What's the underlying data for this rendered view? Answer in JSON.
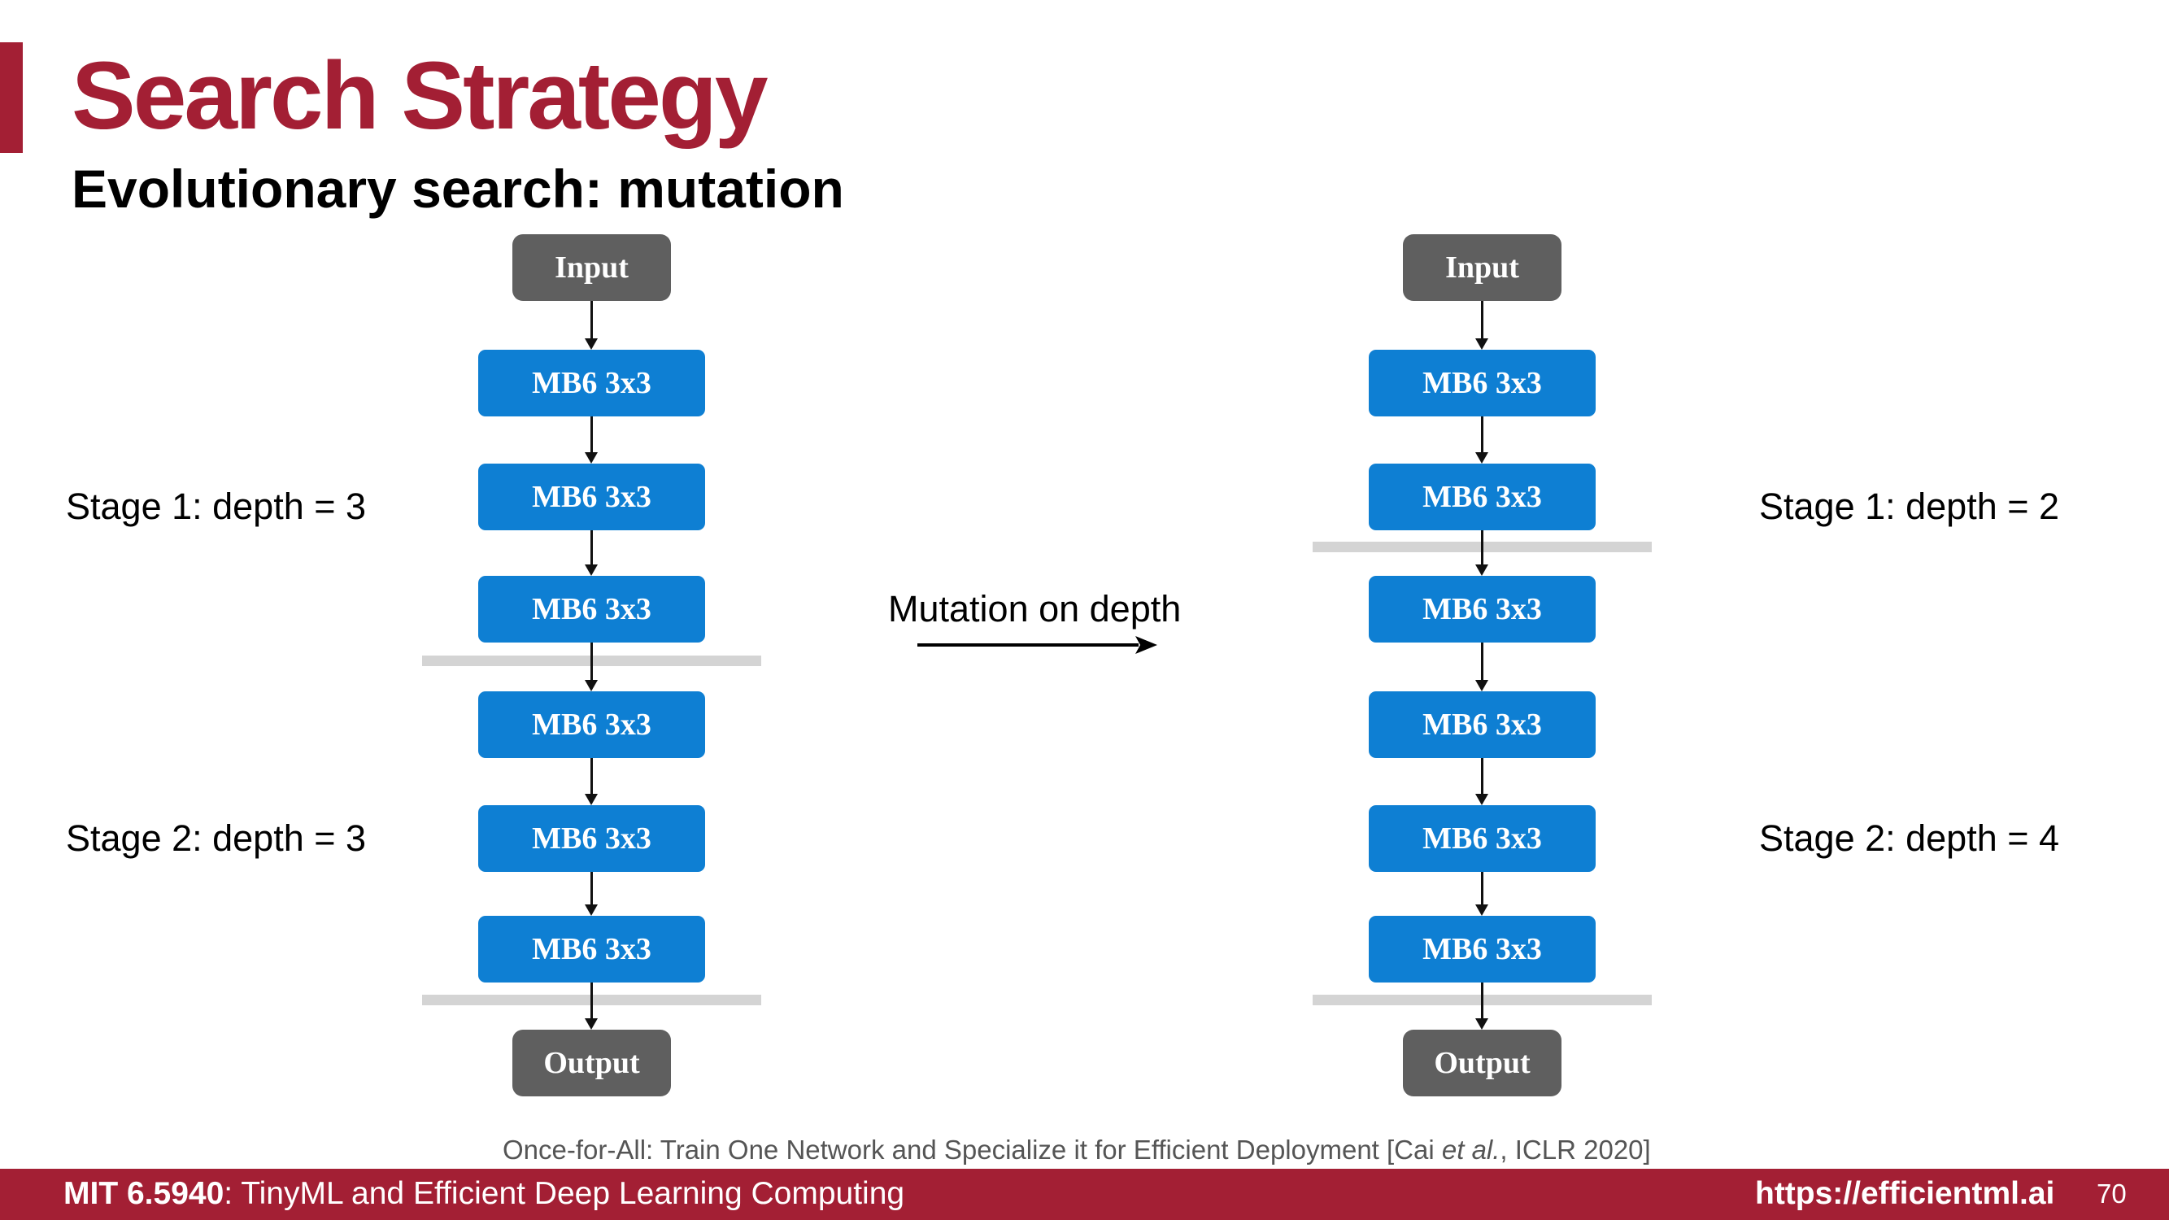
{
  "title": "Search Strategy",
  "subtitle": "Evolutionary search: mutation",
  "left_network": {
    "stage1_label": "Stage 1: depth = 3",
    "stage2_label": "Stage 2: depth = 3",
    "input": "Input",
    "output": "Output",
    "blocks": [
      "MB6 3x3",
      "MB6 3x3",
      "MB6 3x3",
      "MB6 3x3",
      "MB6 3x3",
      "MB6 3x3"
    ]
  },
  "right_network": {
    "stage1_label": "Stage 1: depth = 2",
    "stage2_label": "Stage 2: depth = 4",
    "input": "Input",
    "output": "Output",
    "blocks": [
      "MB6 3x3",
      "MB6 3x3",
      "MB6 3x3",
      "MB6 3x3",
      "MB6 3x3",
      "MB6 3x3"
    ]
  },
  "mutation_label": "Mutation on depth",
  "citation": {
    "before": "Once-for-All: Train One Network and Specialize it for Efficient Deployment [Cai ",
    "etal": "et al.",
    "after": ", ICLR 2020]"
  },
  "footer": {
    "course_code": "MIT 6.5940",
    "course_name": ": TinyML and Efficient Deep Learning Computing",
    "url": "https://efficientml.ai",
    "page_number": "70"
  },
  "colors": {
    "accent": "#a31f34",
    "block_blue": "#0e7fd3",
    "io_gray": "#5f5f5f",
    "separator_gray": "#d4d4d4"
  }
}
